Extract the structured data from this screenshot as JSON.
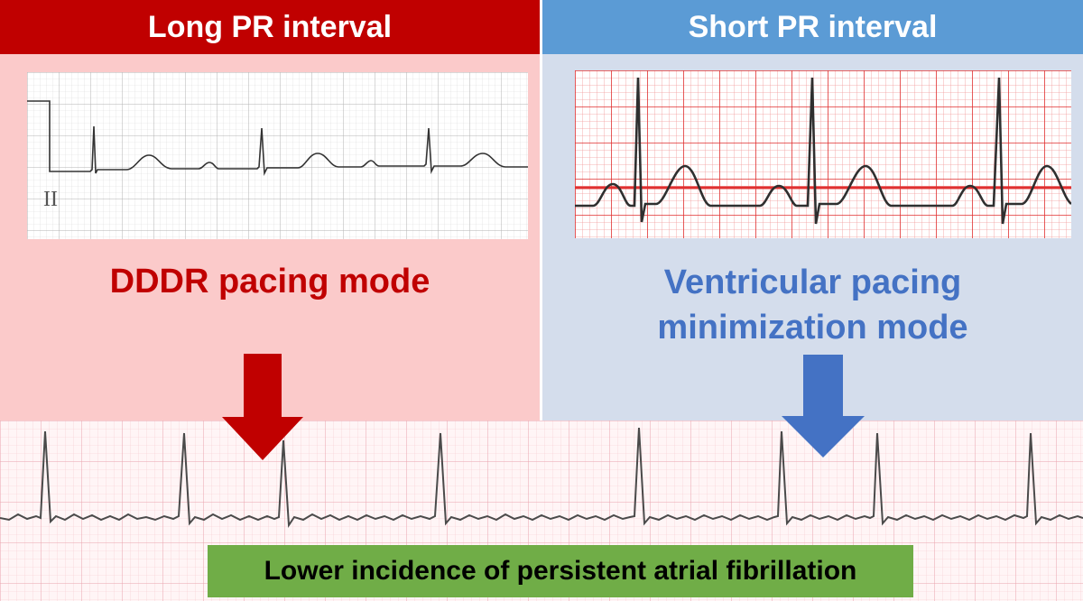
{
  "colors": {
    "long_header": "#c00000",
    "short_header": "#5b9bd5",
    "long_panel": "#fbcaca",
    "short_panel": "#d4ddec",
    "long_text": "#c00000",
    "short_text": "#4472c4",
    "outcome_box": "#70ad47"
  },
  "left": {
    "header": "Long PR interval",
    "ecg_lead_label": "II",
    "mode_label": "DDDR pacing mode"
  },
  "right": {
    "header": "Short PR interval",
    "mode_label_line1": "Ventricular pacing",
    "mode_label_line2": "minimization mode"
  },
  "outcome": {
    "label": "Lower incidence of persistent atrial fibrillation"
  },
  "icons": {
    "left_arrow": "down-arrow-icon",
    "right_arrow": "down-arrow-icon"
  }
}
